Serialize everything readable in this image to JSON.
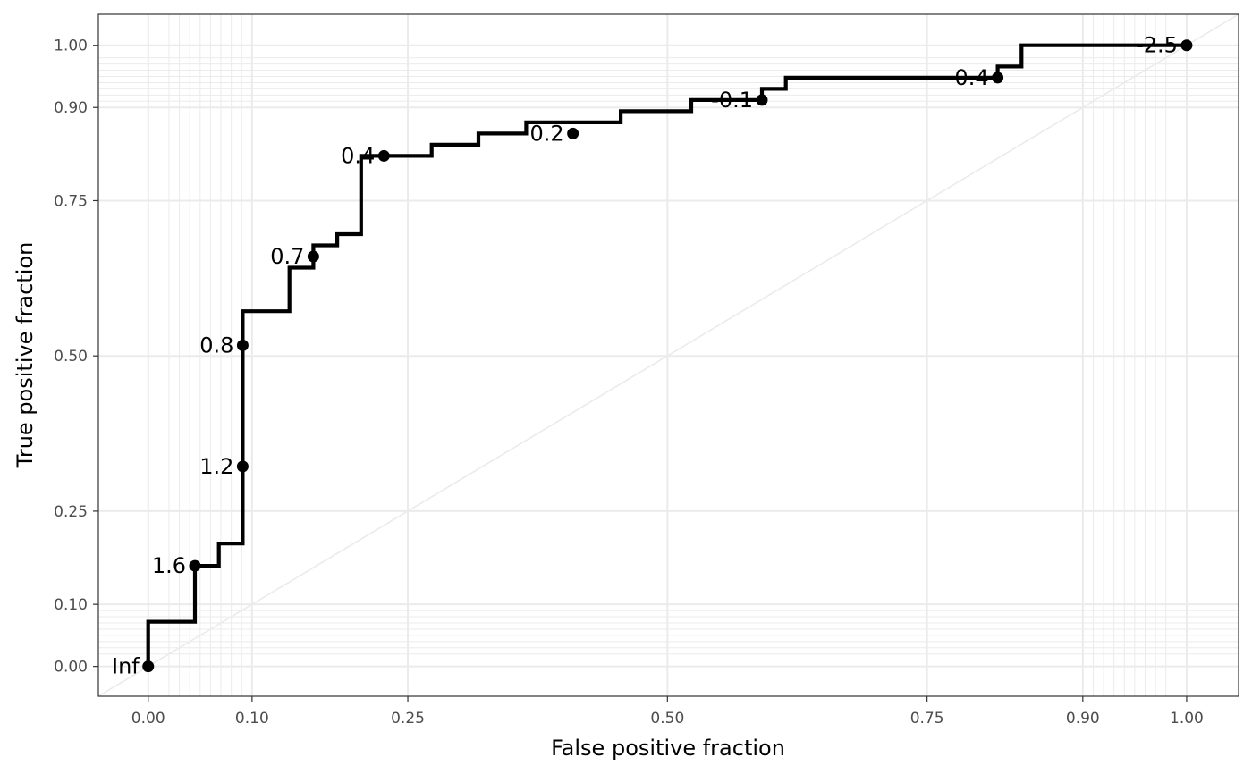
{
  "chart_data": {
    "type": "line",
    "title": "",
    "xlabel": "False positive fraction",
    "ylabel": "True positive fraction",
    "xlim": [
      -0.048,
      1.05
    ],
    "ylim": [
      -0.048,
      1.05
    ],
    "x_ticks": [
      0.0,
      0.1,
      0.25,
      0.5,
      0.75,
      0.9,
      1.0
    ],
    "x_tick_labels": [
      "0.00",
      "0.10",
      "0.25",
      "0.50",
      "0.75",
      "0.90",
      "1.00"
    ],
    "y_ticks": [
      0.0,
      0.1,
      0.25,
      0.5,
      0.75,
      0.9,
      1.0
    ],
    "y_tick_labels": [
      "0.00",
      "0.10",
      "0.25",
      "0.50",
      "0.75",
      "0.90",
      "1.00"
    ],
    "x_minor_grid": [
      0.02,
      0.03,
      0.04,
      0.05,
      0.06,
      0.07,
      0.08,
      0.09,
      0.91,
      0.92,
      0.93,
      0.94,
      0.95,
      0.96,
      0.97,
      0.98
    ],
    "y_minor_grid": [
      0.02,
      0.03,
      0.04,
      0.05,
      0.06,
      0.07,
      0.08,
      0.09,
      0.91,
      0.92,
      0.93,
      0.94,
      0.95,
      0.96,
      0.97,
      0.98
    ],
    "grid": true,
    "reference_line": {
      "x": [
        0,
        1
      ],
      "y": [
        0,
        1
      ],
      "color": "#ebebeb"
    },
    "series": [
      {
        "color": "#000000",
        "step_x": [
          0.0,
          0.0,
          0.045,
          0.045,
          0.068,
          0.068,
          0.091,
          0.091,
          0.136,
          0.136,
          0.159,
          0.159,
          0.182,
          0.182,
          0.205,
          0.205,
          0.273,
          0.273,
          0.318,
          0.318,
          0.364,
          0.364,
          0.455,
          0.455,
          0.523,
          0.523,
          0.591,
          0.591,
          0.614,
          0.614,
          0.818,
          0.818,
          0.841,
          0.841,
          1.0
        ],
        "step_y": [
          0.0,
          0.072,
          0.072,
          0.162,
          0.162,
          0.198,
          0.198,
          0.572,
          0.572,
          0.642,
          0.642,
          0.678,
          0.678,
          0.696,
          0.696,
          0.822,
          0.822,
          0.84,
          0.84,
          0.858,
          0.858,
          0.876,
          0.876,
          0.894,
          0.894,
          0.912,
          0.912,
          0.93,
          0.93,
          0.948,
          0.948,
          0.966,
          0.966,
          1.0,
          1.0
        ]
      }
    ],
    "cutpoints": [
      {
        "label": "Inf",
        "x": 0.0,
        "y": 0.0
      },
      {
        "label": "1.6",
        "x": 0.045,
        "y": 0.162
      },
      {
        "label": "1.2",
        "x": 0.091,
        "y": 0.322
      },
      {
        "label": "0.8",
        "x": 0.091,
        "y": 0.517
      },
      {
        "label": "0.7",
        "x": 0.159,
        "y": 0.66
      },
      {
        "label": "0.4",
        "x": 0.227,
        "y": 0.822
      },
      {
        "label": "0.2",
        "x": 0.409,
        "y": 0.858
      },
      {
        "label": "-0.1",
        "x": 0.591,
        "y": 0.912
      },
      {
        "label": "-0.4",
        "x": 0.818,
        "y": 0.948
      },
      {
        "label": "-2.5",
        "x": 1.0,
        "y": 1.0
      }
    ]
  }
}
